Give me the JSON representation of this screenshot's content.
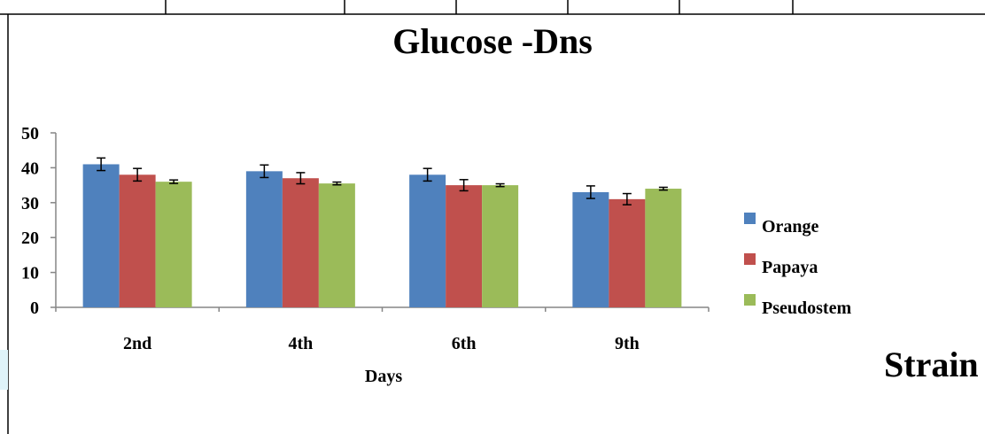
{
  "side_text": "Strain",
  "chart_data": {
    "type": "bar",
    "title": "Glucose -Dns",
    "xlabel": "Days",
    "ylabel": "",
    "ylim": [
      0,
      50
    ],
    "yticks": [
      0,
      10,
      20,
      30,
      40,
      50
    ],
    "categories": [
      "2nd",
      "4th",
      "6th",
      "9th"
    ],
    "legend_position": "right",
    "grid": false,
    "error_bars": true,
    "series": [
      {
        "name": "Orange",
        "color": "#4F81BD",
        "values": [
          41,
          39,
          38,
          33
        ],
        "errors": [
          1.8,
          1.8,
          1.8,
          1.8
        ]
      },
      {
        "name": "Papaya",
        "color": "#C0504D",
        "values": [
          38,
          37,
          35,
          31
        ],
        "errors": [
          1.8,
          1.6,
          1.6,
          1.6
        ]
      },
      {
        "name": "Pseudostem",
        "color": "#9BBB59",
        "values": [
          36,
          35.5,
          35,
          34
        ],
        "errors": [
          0.5,
          0.4,
          0.4,
          0.4
        ]
      }
    ]
  }
}
